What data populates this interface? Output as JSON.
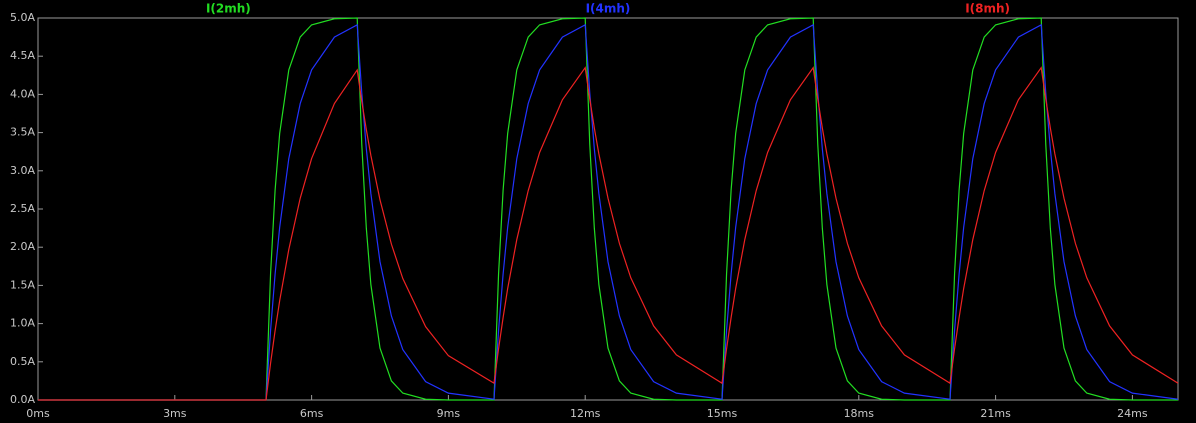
{
  "chart_data": {
    "type": "line",
    "x": [
      0,
      5,
      5.1,
      5.2,
      5.3,
      5.5,
      5.75,
      6,
      6.5,
      7,
      7.1,
      7.2,
      7.3,
      7.5,
      7.75,
      8,
      8.5,
      9,
      10,
      10.1,
      10.2,
      10.3,
      10.5,
      10.75,
      11,
      11.5,
      12,
      12.1,
      12.2,
      12.3,
      12.5,
      12.75,
      13,
      13.5,
      14,
      15,
      15.1,
      15.2,
      15.3,
      15.5,
      15.75,
      16,
      16.5,
      17,
      17.1,
      17.2,
      17.3,
      17.5,
      17.75,
      18,
      18.5,
      19,
      20,
      20.1,
      20.2,
      20.3,
      20.5,
      20.75,
      21,
      21.5,
      22,
      22.1,
      22.2,
      22.3,
      22.5,
      22.75,
      23,
      23.5,
      24,
      25
    ],
    "series": [
      {
        "name": "I(2mh)",
        "color": "#22dd22",
        "values": [
          0,
          0,
          1.65,
          2.75,
          3.49,
          4.32,
          4.75,
          4.91,
          4.99,
          5.0,
          3.35,
          2.25,
          1.51,
          0.68,
          0.25,
          0.09,
          0.01,
          0.0,
          0,
          1.65,
          2.75,
          3.49,
          4.32,
          4.75,
          4.91,
          4.99,
          5.0,
          3.35,
          2.25,
          1.51,
          0.68,
          0.25,
          0.09,
          0.01,
          0.0,
          0,
          1.65,
          2.75,
          3.49,
          4.32,
          4.75,
          4.91,
          4.99,
          5.0,
          3.35,
          2.25,
          1.51,
          0.68,
          0.25,
          0.09,
          0.01,
          0.0,
          0,
          1.65,
          2.75,
          3.49,
          4.32,
          4.75,
          4.91,
          4.99,
          5.0,
          3.35,
          2.25,
          1.51,
          0.68,
          0.25,
          0.09,
          0.01,
          0.0,
          0
        ]
      },
      {
        "name": "I(4mh)",
        "color": "#2233ff",
        "values": [
          0,
          0,
          0.91,
          1.65,
          2.26,
          3.16,
          3.88,
          4.32,
          4.75,
          4.91,
          4.02,
          3.29,
          2.7,
          1.81,
          1.1,
          0.66,
          0.24,
          0.09,
          0.01,
          0.91,
          1.65,
          2.26,
          3.16,
          3.88,
          4.32,
          4.75,
          4.91,
          4.02,
          3.29,
          2.7,
          1.81,
          1.1,
          0.66,
          0.24,
          0.09,
          0.01,
          0.91,
          1.65,
          2.26,
          3.16,
          3.88,
          4.32,
          4.75,
          4.91,
          4.02,
          3.29,
          2.7,
          1.81,
          1.1,
          0.66,
          0.24,
          0.09,
          0.01,
          0.91,
          1.65,
          2.26,
          3.16,
          3.88,
          4.32,
          4.75,
          4.91,
          4.02,
          3.29,
          2.7,
          1.81,
          1.1,
          0.66,
          0.24,
          0.09,
          0.01
        ]
      },
      {
        "name": "I(8mh)",
        "color": "#ee2222",
        "values": [
          0,
          0,
          0.48,
          0.91,
          1.3,
          1.97,
          2.64,
          3.16,
          3.88,
          4.32,
          3.91,
          3.54,
          3.2,
          2.62,
          2.04,
          1.59,
          0.96,
          0.58,
          0.22,
          0.67,
          1.08,
          1.46,
          2.1,
          2.74,
          3.24,
          3.93,
          4.35,
          3.94,
          3.56,
          3.22,
          2.64,
          2.05,
          1.6,
          0.97,
          0.59,
          0.22,
          0.67,
          1.08,
          1.46,
          2.1,
          2.74,
          3.24,
          3.93,
          4.35,
          3.94,
          3.56,
          3.22,
          2.64,
          2.05,
          1.6,
          0.97,
          0.59,
          0.22,
          0.67,
          1.08,
          1.46,
          2.1,
          2.74,
          3.24,
          3.93,
          4.35,
          3.94,
          3.56,
          3.22,
          2.64,
          2.05,
          1.6,
          0.97,
          0.59,
          0.22
        ]
      }
    ],
    "xlim": [
      0,
      25
    ],
    "xticks": [
      {
        "value": 0,
        "label": "0ms"
      },
      {
        "value": 3,
        "label": "3ms"
      },
      {
        "value": 6,
        "label": "6ms"
      },
      {
        "value": 9,
        "label": "9ms"
      },
      {
        "value": 12,
        "label": "12ms"
      },
      {
        "value": 15,
        "label": "15ms"
      },
      {
        "value": 18,
        "label": "18ms"
      },
      {
        "value": 21,
        "label": "21ms"
      },
      {
        "value": 24,
        "label": "24ms"
      }
    ],
    "ylim": [
      0,
      5
    ],
    "yticks": [
      {
        "value": 0,
        "label": "0.0A"
      },
      {
        "value": 0.5,
        "label": "0.5A"
      },
      {
        "value": 1,
        "label": "1.0A"
      },
      {
        "value": 1.5,
        "label": "1.5A"
      },
      {
        "value": 2,
        "label": "2.0A"
      },
      {
        "value": 2.5,
        "label": "2.5A"
      },
      {
        "value": 3,
        "label": "3.0A"
      },
      {
        "value": 3.5,
        "label": "3.5A"
      },
      {
        "value": 4,
        "label": "4.0A"
      },
      {
        "value": 4.5,
        "label": "4.5A"
      },
      {
        "value": 5,
        "label": "5.0A"
      }
    ]
  }
}
